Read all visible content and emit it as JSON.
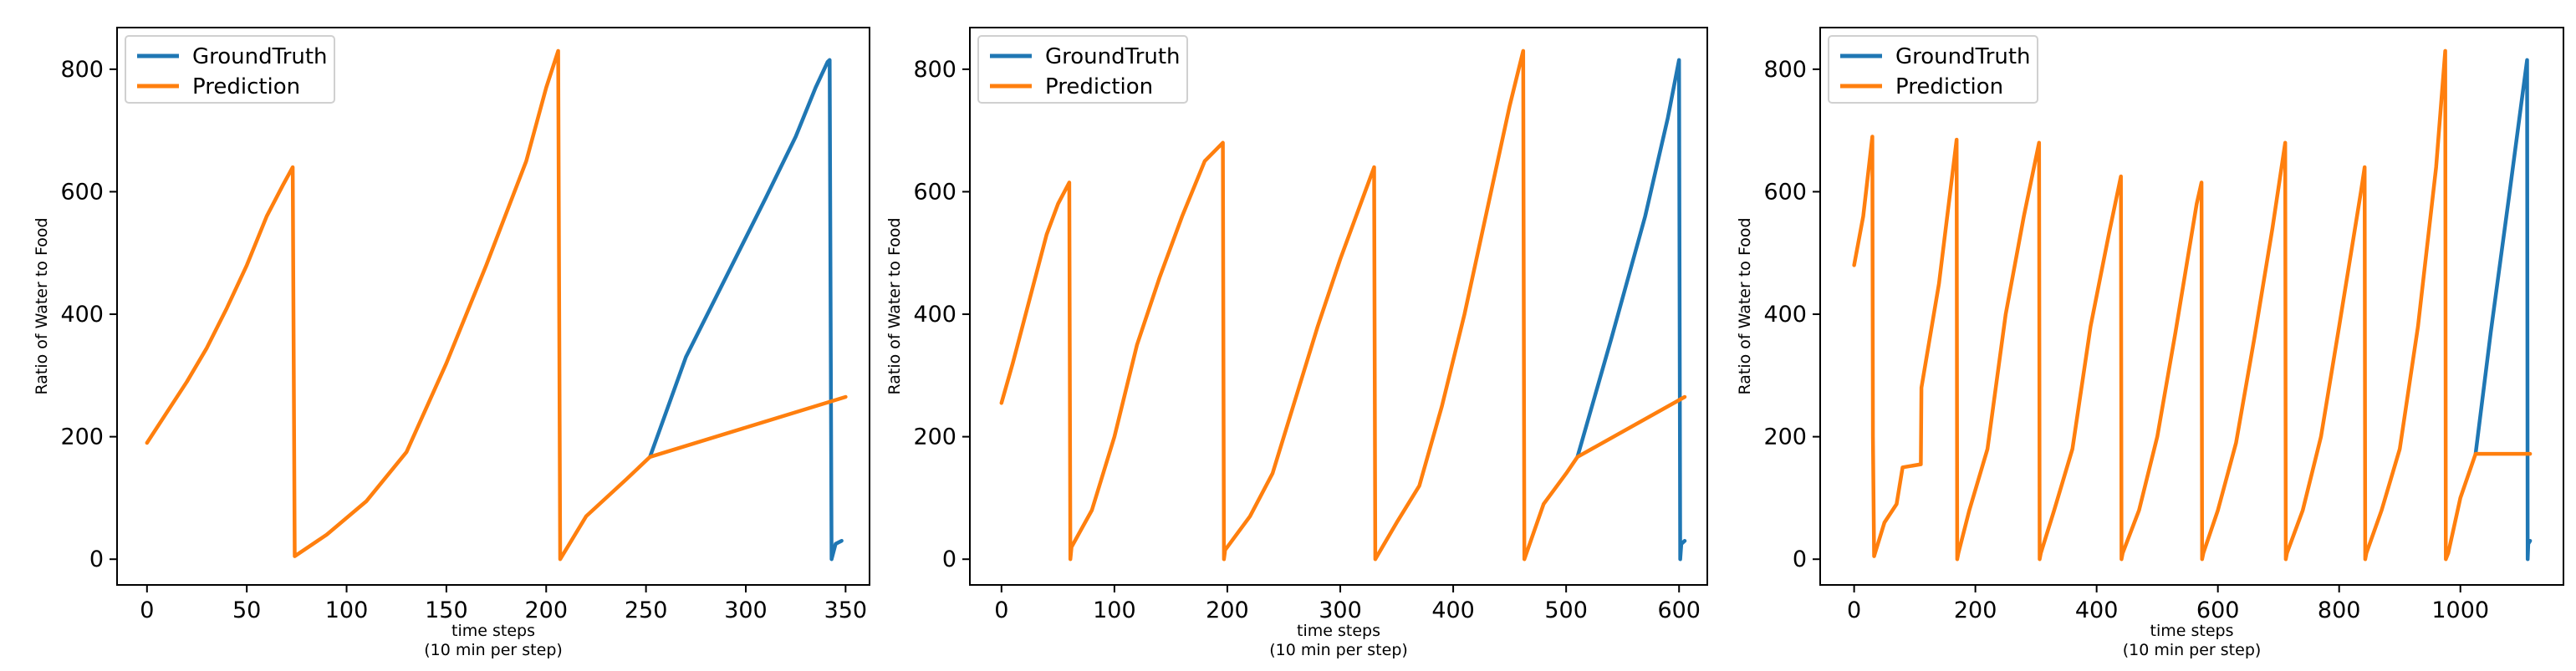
{
  "chart_data": [
    {
      "type": "line",
      "xlabel": "time steps\n(10 min per step)",
      "ylabel": "Ratio of Water to Food",
      "xlim": [
        -15,
        362
      ],
      "ylim": [
        -42,
        868
      ],
      "xticks": [
        0,
        50,
        100,
        150,
        200,
        250,
        300,
        350
      ],
      "yticks": [
        0,
        200,
        400,
        600,
        800
      ],
      "legend": "top-left",
      "series": [
        {
          "name": "GroundTruth",
          "color": "#1f77b4",
          "x": [
            252,
            270,
            290,
            310,
            325,
            335,
            341,
            342,
            343,
            345,
            348
          ],
          "y": [
            167,
            330,
            460,
            590,
            690,
            770,
            812,
            815,
            0,
            25,
            30
          ]
        },
        {
          "name": "Prediction",
          "color": "#ff7f0e",
          "x": [
            0,
            10,
            20,
            30,
            40,
            50,
            60,
            68,
            73,
            74,
            90,
            110,
            130,
            150,
            170,
            190,
            200,
            206,
            207,
            220,
            240,
            252,
            350
          ],
          "y": [
            190,
            240,
            290,
            345,
            410,
            480,
            560,
            610,
            640,
            5,
            40,
            95,
            175,
            320,
            480,
            650,
            770,
            830,
            0,
            70,
            130,
            167,
            265
          ]
        }
      ]
    },
    {
      "type": "line",
      "xlabel": "time steps\n(10 min per step)",
      "ylabel": "Ratio of Water to Food",
      "xlim": [
        -28,
        625
      ],
      "ylim": [
        -42,
        868
      ],
      "xticks": [
        0,
        100,
        200,
        300,
        400,
        500,
        600
      ],
      "yticks": [
        0,
        200,
        400,
        600,
        800
      ],
      "legend": "top-left",
      "series": [
        {
          "name": "GroundTruth",
          "color": "#1f77b4",
          "x": [
            510,
            540,
            570,
            590,
            600,
            601,
            602,
            605
          ],
          "y": [
            167,
            360,
            560,
            720,
            815,
            0,
            25,
            30
          ]
        },
        {
          "name": "Prediction",
          "color": "#ff7f0e",
          "x": [
            0,
            10,
            20,
            30,
            40,
            50,
            60,
            61,
            62,
            80,
            100,
            120,
            140,
            160,
            180,
            196,
            197,
            198,
            220,
            240,
            260,
            280,
            300,
            320,
            330,
            331,
            350,
            370,
            390,
            410,
            430,
            450,
            462,
            463,
            480,
            500,
            510,
            605
          ],
          "y": [
            255,
            320,
            390,
            460,
            530,
            580,
            615,
            0,
            20,
            80,
            200,
            350,
            460,
            560,
            650,
            680,
            0,
            15,
            70,
            140,
            260,
            380,
            490,
            590,
            640,
            0,
            60,
            120,
            250,
            400,
            570,
            740,
            830,
            0,
            90,
            140,
            167,
            265
          ]
        }
      ]
    },
    {
      "type": "line",
      "xlabel": "time steps\n(10 min per step)",
      "ylabel": "Ratio of Water to Food",
      "xlim": [
        -56,
        1170
      ],
      "ylim": [
        -42,
        868
      ],
      "xticks": [
        0,
        200,
        400,
        600,
        800,
        1000
      ],
      "yticks": [
        0,
        200,
        400,
        600,
        800
      ],
      "legend": "top-left",
      "series": [
        {
          "name": "GroundTruth",
          "color": "#1f77b4",
          "x": [
            1025,
            1050,
            1080,
            1100,
            1110,
            1111,
            1112,
            1115
          ],
          "y": [
            172,
            370,
            590,
            740,
            815,
            0,
            25,
            30
          ]
        },
        {
          "name": "Prediction",
          "color": "#ff7f0e",
          "x": [
            0,
            15,
            30,
            31,
            33,
            50,
            70,
            80,
            110,
            111,
            140,
            169,
            170,
            172,
            190,
            220,
            250,
            280,
            305,
            306,
            308,
            330,
            360,
            390,
            420,
            440,
            441,
            443,
            470,
            500,
            530,
            565,
            573,
            574,
            576,
            600,
            630,
            660,
            690,
            711,
            712,
            714,
            740,
            770,
            800,
            836,
            842,
            843,
            845,
            870,
            900,
            930,
            960,
            975,
            976,
            980,
            1000,
            1025,
            1115
          ],
          "y": [
            480,
            560,
            690,
            200,
            5,
            60,
            90,
            150,
            155,
            280,
            450,
            685,
            0,
            10,
            80,
            180,
            400,
            560,
            680,
            0,
            10,
            80,
            180,
            380,
            530,
            625,
            0,
            10,
            80,
            200,
            370,
            580,
            615,
            0,
            10,
            80,
            190,
            360,
            540,
            680,
            0,
            10,
            80,
            200,
            380,
            600,
            640,
            0,
            10,
            80,
            180,
            380,
            640,
            830,
            0,
            10,
            100,
            172,
            172
          ]
        }
      ]
    }
  ]
}
